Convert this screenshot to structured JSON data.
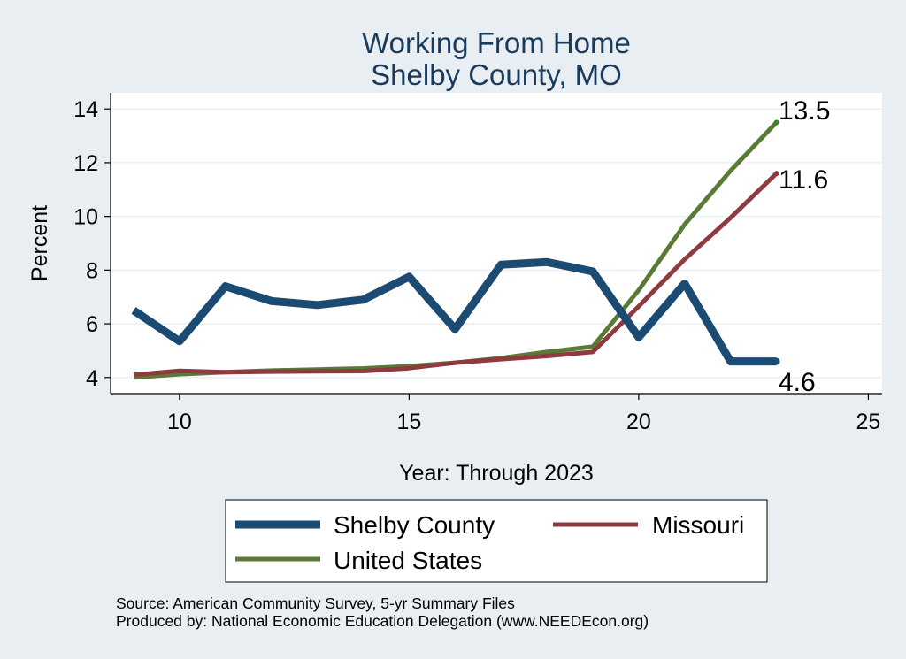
{
  "chart_data": {
    "type": "line",
    "title": [
      "Working From Home",
      "Shelby County, MO"
    ],
    "xlabel": "Year: Through 2023",
    "ylabel": "Percent",
    "xlim": [
      8.5,
      25.3
    ],
    "ylim": [
      3.4,
      14.6
    ],
    "xticks": [
      10,
      15,
      20,
      25
    ],
    "yticks": [
      4,
      6,
      8,
      10,
      12,
      14
    ],
    "grid": true,
    "x": [
      9,
      10,
      11,
      12,
      13,
      14,
      15,
      16,
      17,
      18,
      19,
      20,
      21,
      22,
      23
    ],
    "series": [
      {
        "name": "Shelby County",
        "color": "#1b4a73",
        "values": [
          6.5,
          5.35,
          7.4,
          6.85,
          6.7,
          6.9,
          7.75,
          5.8,
          8.2,
          8.3,
          7.95,
          5.5,
          7.5,
          4.6,
          4.6
        ]
      },
      {
        "name": "Missouri",
        "color": "#8f3a3e",
        "values": [
          4.1,
          4.25,
          4.2,
          4.22,
          4.23,
          4.24,
          4.35,
          4.55,
          4.68,
          4.8,
          4.95,
          6.65,
          8.4,
          9.95,
          11.6
        ]
      },
      {
        "name": "United States",
        "color": "#5b7a36",
        "values": [
          4.0,
          4.12,
          4.2,
          4.26,
          4.3,
          4.34,
          4.42,
          4.55,
          4.72,
          4.95,
          5.15,
          7.25,
          9.7,
          11.7,
          13.5
        ]
      }
    ],
    "end_labels": [
      "13.5",
      "11.6",
      "4.6"
    ],
    "legend": [
      "Shelby County",
      "Missouri",
      "United States"
    ],
    "legend_position": "bottom"
  },
  "source": {
    "line1": "Source: American Community Survey, 5-yr Summary Files",
    "line2": "Produced by: National Economic Education Delegation (www.NEEDEcon.org)"
  }
}
